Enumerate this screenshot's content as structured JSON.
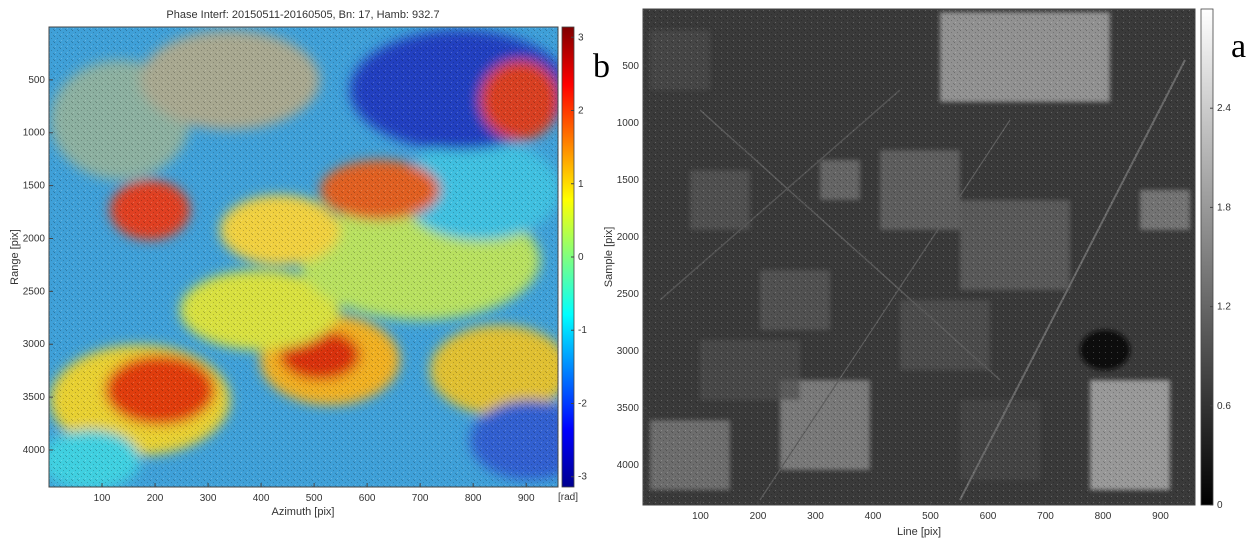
{
  "figure_labels": {
    "left_panel": "b",
    "right_panel": "a"
  },
  "chart_data": [
    {
      "type": "heatmap",
      "title": "Phase Interf: 20150511-20160505, Bn: 17, Hamb: 932.7",
      "xlabel": "Azimuth [pix]",
      "ylabel": "Range [pix]",
      "xlim": [
        0,
        960
      ],
      "ylim": [
        4350,
        0
      ],
      "xticks": [
        "100",
        "200",
        "300",
        "400",
        "500",
        "600",
        "700",
        "800",
        "900"
      ],
      "xtick_values": [
        100,
        200,
        300,
        400,
        500,
        600,
        700,
        800,
        900
      ],
      "yticks": [
        "500",
        "1000",
        "1500",
        "2000",
        "2500",
        "3000",
        "3500",
        "4000"
      ],
      "ytick_values": [
        500,
        1000,
        1500,
        2000,
        2500,
        3000,
        3500,
        4000
      ],
      "colorbar": {
        "colormap": "jet",
        "range": [
          -3.14,
          3.14
        ],
        "ticks": [
          "3",
          "2",
          "1",
          "0",
          "-1",
          "-2",
          "-3"
        ],
        "tick_values": [
          3,
          2,
          1,
          0,
          -1,
          -2,
          -3
        ],
        "unit_label": "[rad]"
      },
      "grid": false
    },
    {
      "type": "heatmap",
      "title": "",
      "xlabel": "Line [pix]",
      "ylabel": "Sample [pix]",
      "xlim": [
        0,
        960
      ],
      "ylim": [
        4350,
        0
      ],
      "xticks": [
        "100",
        "200",
        "300",
        "400",
        "500",
        "600",
        "700",
        "800",
        "900"
      ],
      "xtick_values": [
        100,
        200,
        300,
        400,
        500,
        600,
        700,
        800,
        900
      ],
      "yticks": [
        "500",
        "1000",
        "1500",
        "2000",
        "2500",
        "3000",
        "3500",
        "4000"
      ],
      "ytick_values": [
        500,
        1000,
        1500,
        2000,
        2500,
        3000,
        3500,
        4000
      ],
      "colorbar": {
        "colormap": "gray",
        "range": [
          0,
          3
        ],
        "ticks": [
          "2.4",
          "1.8",
          "1.2",
          "0.6",
          "0"
        ],
        "tick_values": [
          2.4,
          1.8,
          1.2,
          0.6,
          0
        ]
      },
      "grid": false
    }
  ]
}
